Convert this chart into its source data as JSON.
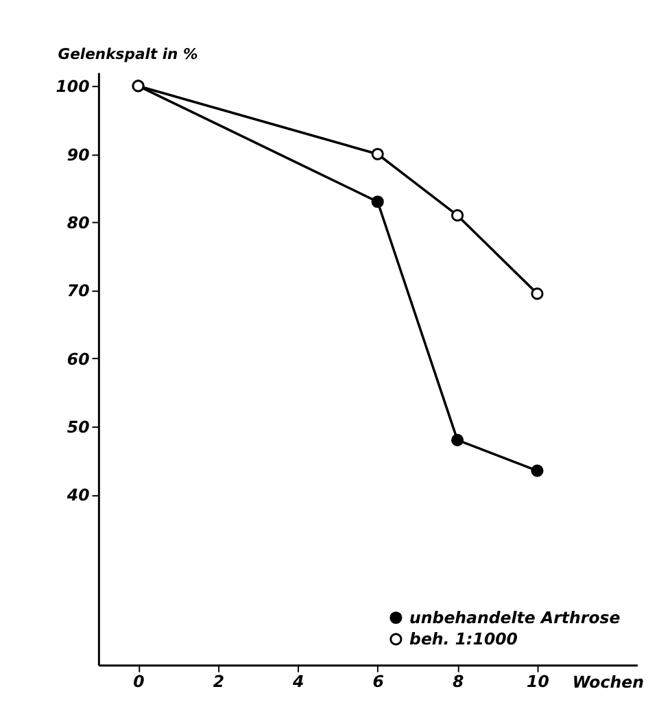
{
  "chart_data": {
    "type": "line",
    "ylabel": "Gelenkspalt in %",
    "xlabel": "Wochen",
    "x": [
      0,
      6,
      8,
      10
    ],
    "series": [
      {
        "name": "unbehandelte Arthrose",
        "color": "#000000",
        "values": [
          100,
          83,
          48,
          43.5
        ]
      },
      {
        "name": "beh. 1:1000",
        "color": "#000000",
        "values": [
          100,
          90,
          81,
          69.5
        ]
      }
    ],
    "xlim": [
      -1,
      12.5
    ],
    "xticks": [
      0,
      2,
      4,
      6,
      8,
      10
    ],
    "ylim": [
      15,
      102
    ],
    "yticks": [
      40,
      50,
      60,
      70,
      80,
      90,
      100
    ],
    "marker": "circle",
    "line_style": "solid",
    "grid": false,
    "legend": "bottom right"
  }
}
